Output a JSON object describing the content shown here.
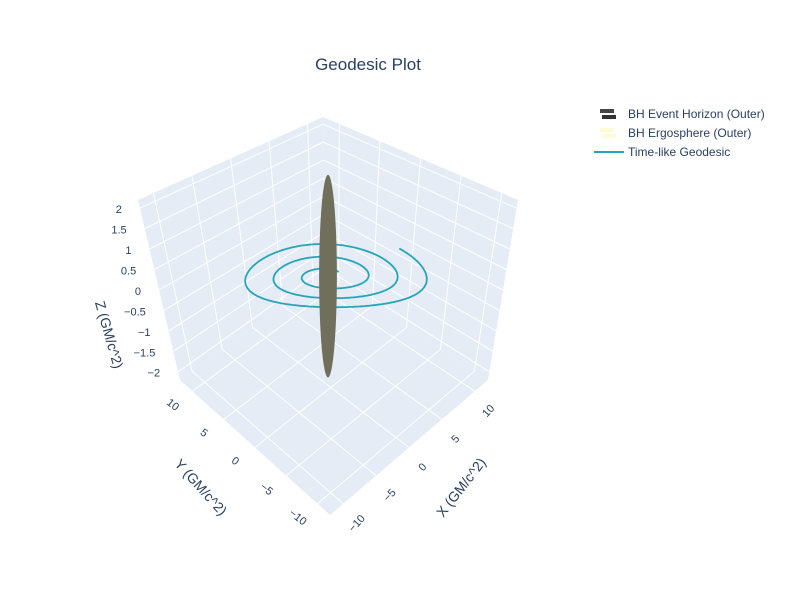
{
  "chart_data": {
    "type": "scatter3d",
    "title": "Geodesic Plot",
    "colors": {
      "geodesic": "#25a6b8",
      "horizon_fill": "#6f6f5c",
      "ergosphere": "#fffbd6",
      "pane": "#e5ecf6",
      "grid": "#ffffff",
      "text": "#2a3f5f"
    },
    "axes": {
      "x": {
        "label": "X (GM/c^2)",
        "ticks": [
          -10,
          -5,
          0,
          5,
          10
        ],
        "range": [
          -12,
          12
        ]
      },
      "y": {
        "label": "Y (GM/c^2)",
        "ticks": [
          -10,
          -5,
          0,
          5,
          10
        ],
        "range": [
          -12,
          12
        ]
      },
      "z": {
        "label": "Z (GM/c^2)",
        "ticks": [
          -2,
          -1.5,
          -1,
          -0.5,
          0,
          0.5,
          1,
          1.5,
          2
        ],
        "range": [
          -2.2,
          2.2
        ]
      }
    },
    "legend": {
      "placement": "top-right",
      "entries": [
        {
          "label": "BH Event Horizon (Outer)",
          "symbol": "surface-dark"
        },
        {
          "label": "BH Ergosphere (Outer)",
          "symbol": "surface-light"
        },
        {
          "label": "Time-like Geodesic",
          "symbol": "line"
        }
      ]
    },
    "series": [
      {
        "name": "Time-like Geodesic",
        "kind": "spiral",
        "z": 0,
        "r_start": 1.5,
        "r_end": 10,
        "turns": 3
      },
      {
        "name": "BH Event Horizon (Outer)",
        "kind": "surface",
        "x_radius": 1,
        "y_radius": 1,
        "z_half_height": 2
      }
    ]
  }
}
